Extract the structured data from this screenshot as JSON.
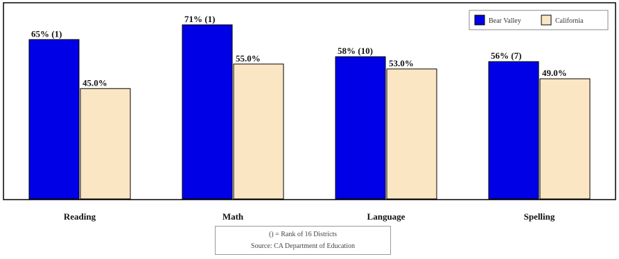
{
  "chart_data": {
    "type": "bar",
    "categories": [
      "Reading",
      "Math",
      "Language",
      "Spelling"
    ],
    "series": [
      {
        "name": "Bear Valley",
        "values": [
          65,
          71,
          58,
          56
        ],
        "labels": [
          "65% (1)",
          "71% (1)",
          "58% (10)",
          "56% (7)"
        ],
        "color": "#0000e6"
      },
      {
        "name": "California",
        "values": [
          45,
          55,
          53,
          49
        ],
        "labels": [
          "45.0%",
          "55.0%",
          "53.0%",
          "49.0%"
        ],
        "color": "#fbe6c4"
      }
    ],
    "ylim": [
      0,
      80
    ],
    "grid": false,
    "legend": "top-right"
  },
  "notes": {
    "line1": "() = Rank of 16 Districts",
    "line2": "Source: CA Department of Education"
  }
}
